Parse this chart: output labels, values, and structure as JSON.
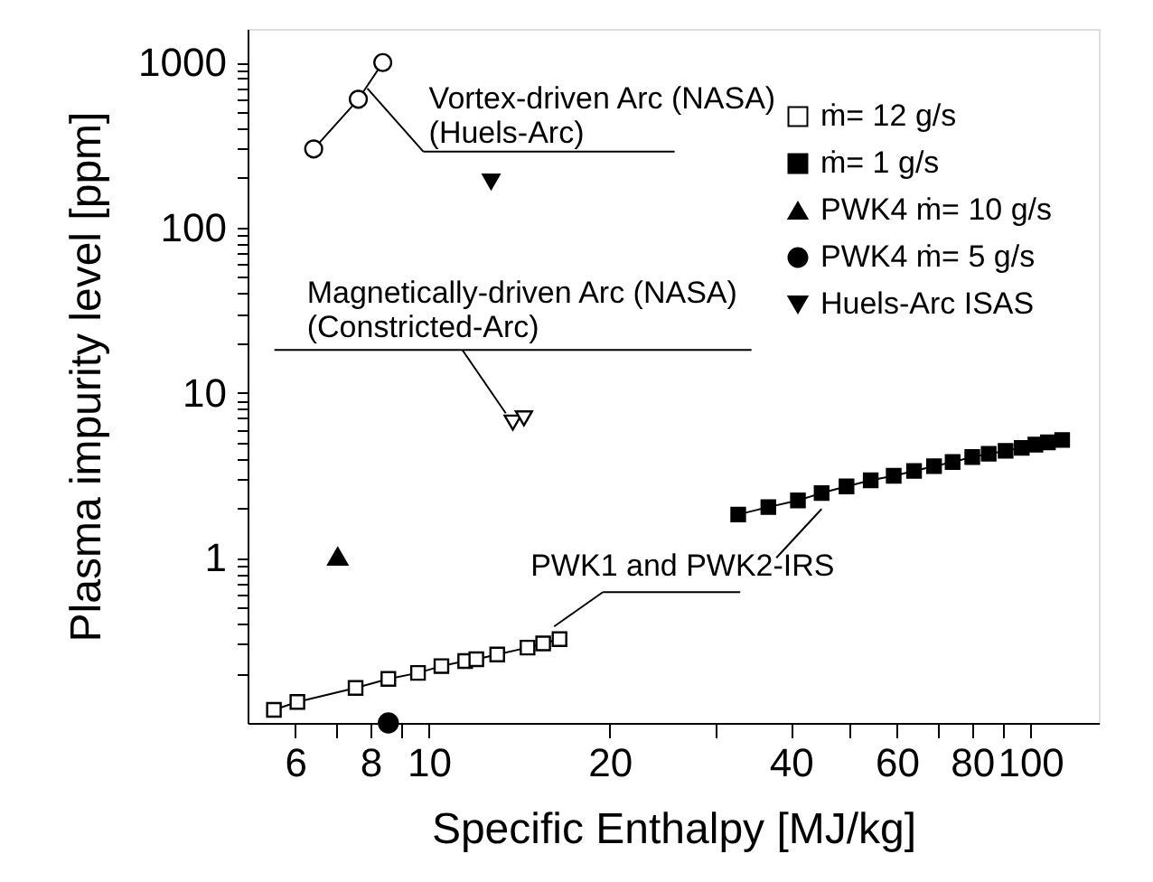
{
  "chart_data": {
    "type": "line",
    "xlabel": "Specific Enthalpy [MJ/kg]",
    "ylabel": "Plasma impurity level [ppm]",
    "log": "xy",
    "xlim": [
      5,
      130
    ],
    "ylim": [
      0.1,
      1600
    ],
    "xticks": [
      {
        "value": 6,
        "label": "6"
      },
      {
        "value": 7,
        "label": null
      },
      {
        "value": 8,
        "label": "8"
      },
      {
        "value": 9,
        "label": null
      },
      {
        "value": 10,
        "label": "10"
      },
      {
        "value": 20,
        "label": "20"
      },
      {
        "value": 30,
        "label": null
      },
      {
        "value": 40,
        "label": "40"
      },
      {
        "value": 50,
        "label": null
      },
      {
        "value": 60,
        "label": "60"
      },
      {
        "value": 70,
        "label": null
      },
      {
        "value": 80,
        "label": "80"
      },
      {
        "value": 90,
        "label": null
      },
      {
        "value": 100,
        "label": "100"
      }
    ],
    "yticks": [
      {
        "value": 0.2,
        "label": null
      },
      {
        "value": 0.3,
        "label": null
      },
      {
        "value": 0.4,
        "label": null
      },
      {
        "value": 0.5,
        "label": null
      },
      {
        "value": 0.6,
        "label": null
      },
      {
        "value": 0.7,
        "label": null
      },
      {
        "value": 0.8,
        "label": null
      },
      {
        "value": 0.9,
        "label": null
      },
      1,
      {
        "value": 2,
        "label": null
      },
      {
        "value": 3,
        "label": null
      },
      {
        "value": 4,
        "label": null
      },
      {
        "value": 5,
        "label": null
      },
      {
        "value": 6,
        "label": null
      },
      {
        "value": 7,
        "label": null
      },
      {
        "value": 8,
        "label": null
      },
      {
        "value": 9,
        "label": null
      },
      10,
      {
        "value": 20,
        "label": null
      },
      {
        "value": 30,
        "label": null
      },
      {
        "value": 40,
        "label": null
      },
      {
        "value": 50,
        "label": null
      },
      {
        "value": 60,
        "label": null
      },
      {
        "value": 70,
        "label": null
      },
      {
        "value": 80,
        "label": null
      },
      {
        "value": 90,
        "label": null
      },
      100,
      {
        "value": 200,
        "label": null
      },
      {
        "value": 300,
        "label": null
      },
      {
        "value": 400,
        "label": null
      },
      {
        "value": 500,
        "label": null
      },
      {
        "value": 600,
        "label": null
      },
      {
        "value": 700,
        "label": null
      },
      {
        "value": 800,
        "label": null
      },
      {
        "value": 900,
        "label": null
      },
      1000
    ],
    "grid": false,
    "legend": "top right",
    "series": [
      {
        "name": "ṁ= 12 g/s",
        "marker": "square-open",
        "color": "#000000",
        "x": [
          5.53,
          6.05,
          7.56,
          8.57,
          9.6,
          10.5,
          11.5,
          12.0,
          13.0,
          14.6,
          15.5,
          16.5
        ],
        "values": [
          0.12,
          0.134,
          0.163,
          0.185,
          0.201,
          0.221,
          0.237,
          0.243,
          0.26,
          0.286,
          0.303,
          0.322
        ]
      },
      {
        "name": "ṁ= 1 g/s",
        "marker": "square",
        "color": "#000000",
        "x": [
          32.7,
          36.7,
          41.1,
          45.0,
          49.5,
          54.3,
          59.3,
          64.1,
          69.2,
          74.3,
          80.1,
          85.3,
          91,
          96.8,
          102,
          107,
          113
        ],
        "values": [
          1.83,
          2.03,
          2.23,
          2.47,
          2.71,
          2.95,
          3.14,
          3.36,
          3.59,
          3.81,
          4.08,
          4.27,
          4.45,
          4.64,
          4.85,
          5.01,
          5.18
        ]
      },
      {
        "name": "PWK4 ṁ= 10 g/s",
        "type": "scatter",
        "marker": "triangle",
        "color": "#000000",
        "x": [
          7.06
        ],
        "values": [
          1.02
        ]
      },
      {
        "name": "PWK4 ṁ= 5 g/s",
        "type": "scatter",
        "marker": "circle",
        "color": "#000000",
        "x": [
          8.57
        ],
        "values": [
          0.1
        ]
      },
      {
        "name": "Huels-Arc ISAS",
        "type": "scatter",
        "marker": "triangle-down",
        "color": "#000000",
        "x": [
          12.7
        ],
        "values": [
          190
        ]
      },
      {
        "marker": "circle-open",
        "color": "#000000",
        "x": [
          6.44,
          7.64,
          8.39
        ],
        "values": [
          300,
          600,
          1000
        ]
      },
      {
        "type": "scatter",
        "marker": "triangle-down-open",
        "color": "#000000",
        "x": [
          13.8,
          14.4
        ],
        "values": [
          6.6,
          7.0
        ]
      }
    ],
    "annotations": [
      {
        "text": "Vortex-driven Arc (NASA)\n(Huels-Arc)",
        "x": 7.64,
        "y": 600
      },
      {
        "text": "Magnetically-driven Arc (NASA)\n(Constricted-Arc)",
        "x": 14.0,
        "y": 6.8
      },
      {
        "text": "PWK1 and PWK2-IRS",
        "x": 16.5,
        "y": 0.322
      }
    ]
  }
}
